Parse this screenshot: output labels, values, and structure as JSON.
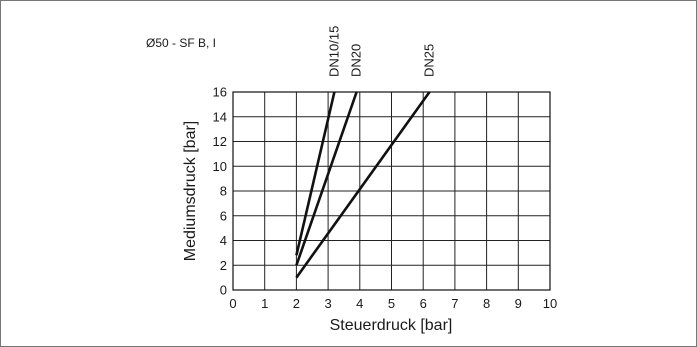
{
  "chart_data": {
    "type": "line",
    "subtitle": "Ø50 - SF B, I",
    "xlabel": "Steuerdruck [bar]",
    "ylabel": "Mediumsdruck [bar]",
    "xlim": [
      0,
      10
    ],
    "ylim": [
      0,
      16
    ],
    "x_ticks": [
      0,
      1,
      2,
      3,
      4,
      5,
      6,
      7,
      8,
      9,
      10
    ],
    "y_ticks": [
      0,
      2,
      4,
      6,
      8,
      10,
      12,
      14,
      16
    ],
    "grid": true,
    "series": [
      {
        "name": "DN10/15",
        "points": [
          [
            2.0,
            2.8
          ],
          [
            3.2,
            16
          ]
        ]
      },
      {
        "name": "DN20",
        "points": [
          [
            2.0,
            2.0
          ],
          [
            3.9,
            16
          ]
        ]
      },
      {
        "name": "DN25",
        "points": [
          [
            2.0,
            1.0
          ],
          [
            6.2,
            16
          ]
        ]
      }
    ]
  }
}
